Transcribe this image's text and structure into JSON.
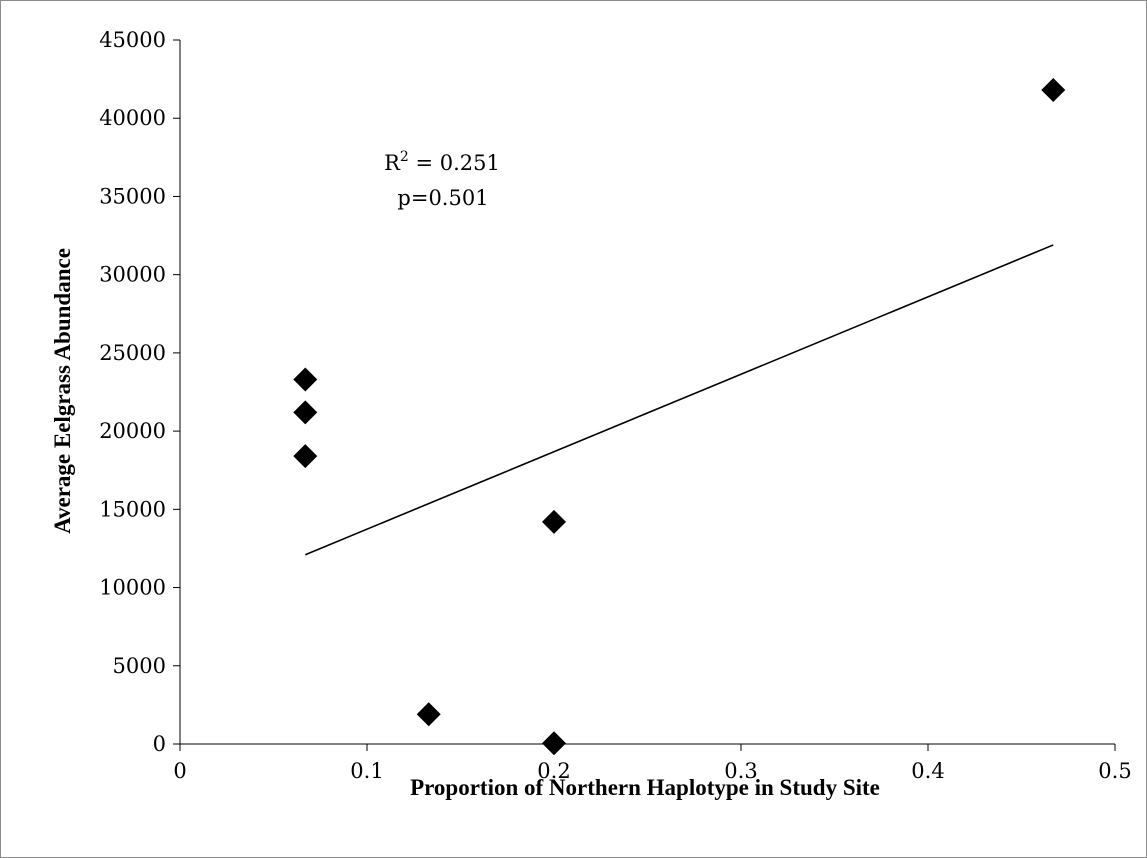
{
  "chart_data": {
    "type": "scatter",
    "title": "",
    "xlabel": "Proportion of Northern Haplotype in Study Site",
    "ylabel": "Average Eelgrass Abundance",
    "xlim": [
      0,
      0.5
    ],
    "ylim": [
      0,
      45000
    ],
    "x_ticks": [
      "0",
      "0.1",
      "0.2",
      "0.3",
      "0.4",
      "0.5"
    ],
    "y_ticks": [
      "0",
      "5000",
      "10000",
      "15000",
      "20000",
      "25000",
      "30000",
      "35000",
      "40000",
      "45000"
    ],
    "points": [
      {
        "x": 0.067,
        "y": 23300
      },
      {
        "x": 0.067,
        "y": 21200
      },
      {
        "x": 0.067,
        "y": 18400
      },
      {
        "x": 0.133,
        "y": 1900
      },
      {
        "x": 0.2,
        "y": 14200
      },
      {
        "x": 0.2,
        "y": 50
      },
      {
        "x": 0.467,
        "y": 41800
      }
    ],
    "trendline": {
      "x": [
        0.067,
        0.467
      ],
      "y": [
        12100,
        31900
      ]
    },
    "annotation": {
      "r2_label": "R",
      "r2_sup": "2",
      "r2_value": " = 0.251",
      "p_text": "p=0.501"
    },
    "marker": "diamond",
    "marker_color": "#000000",
    "grid": false,
    "legend": "none"
  }
}
